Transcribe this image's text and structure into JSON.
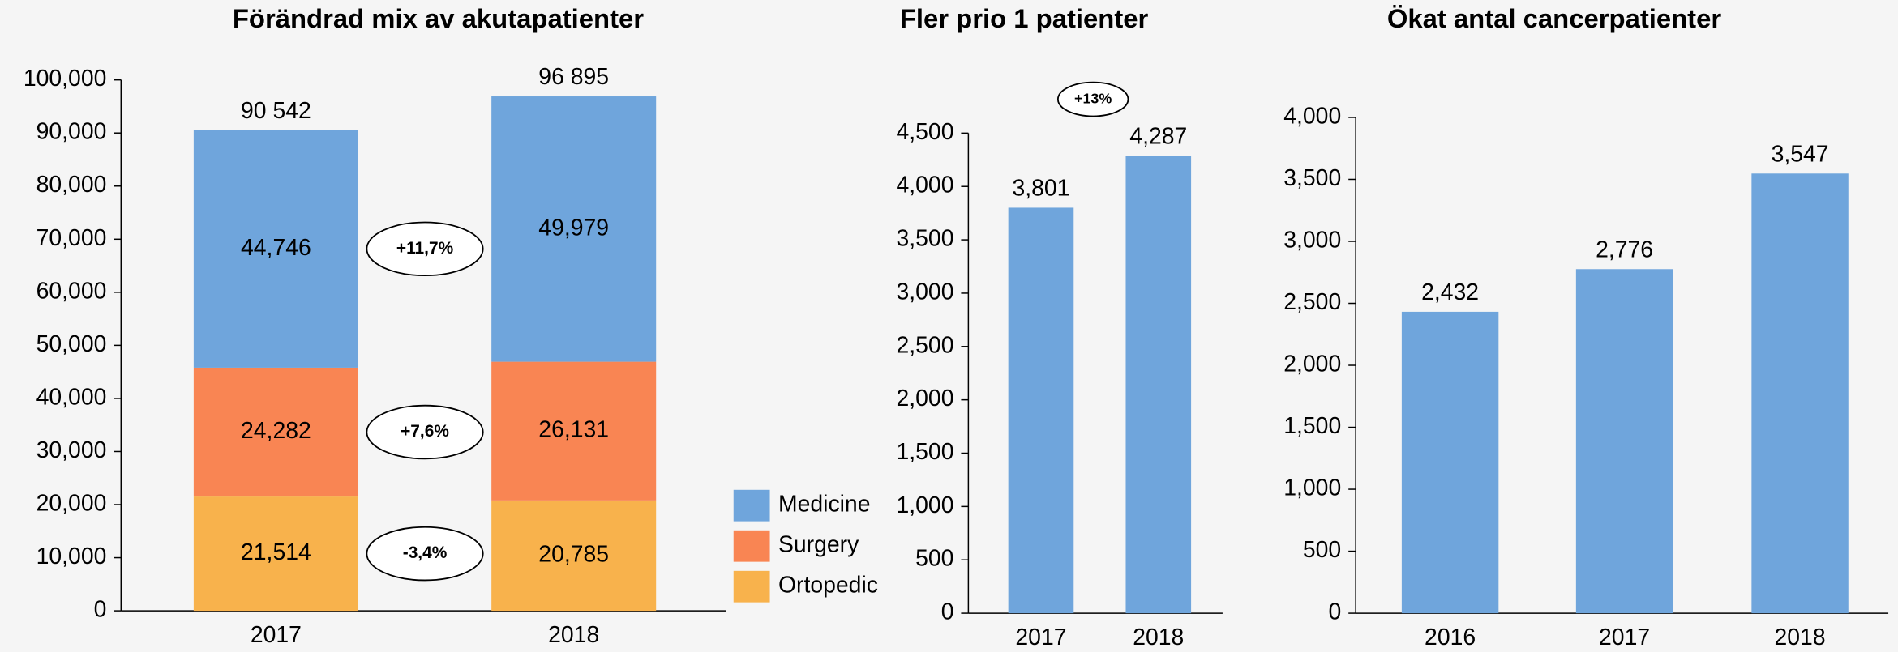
{
  "chart_data": [
    {
      "type": "stacked-bar",
      "title": "Förändrad mix av akutapatienter",
      "categories": [
        "2017",
        "2018"
      ],
      "series": [
        {
          "name": "Medicine",
          "color": "#6fa5dc",
          "values": [
            44746,
            49979
          ],
          "value_labels": [
            "44,746",
            "49,979"
          ]
        },
        {
          "name": "Surgery",
          "color": "#f98553",
          "values": [
            24282,
            26131
          ],
          "value_labels": [
            "24,282",
            "26,131"
          ]
        },
        {
          "name": "Ortopedic",
          "color": "#f8b24c",
          "values": [
            21514,
            20785
          ],
          "value_labels": [
            "21,514",
            "20,785"
          ]
        }
      ],
      "total_labels": [
        "90 542",
        "96 895"
      ],
      "annotations": [
        "+11,7%",
        "+7,6%",
        "-3,4%"
      ],
      "ylim": [
        0,
        100000
      ],
      "yticks": [
        0,
        {
          "value": 10000,
          "label": "10,000"
        },
        {
          "value": 20000,
          "label": "20,000"
        },
        {
          "value": 30000,
          "label": "30,000"
        },
        {
          "value": 40000,
          "label": "40,000"
        },
        {
          "value": 50000,
          "label": "50,000"
        },
        {
          "value": 60000,
          "label": "60,000"
        },
        {
          "value": 70000,
          "label": "70,000"
        },
        {
          "value": 80000,
          "label": "80,000"
        },
        {
          "value": 90000,
          "label": "90,000"
        },
        {
          "value": 100000,
          "label": "100,000"
        }
      ],
      "legend": "right"
    },
    {
      "type": "bar",
      "title": "Fler prio 1 patienter",
      "categories": [
        "2017",
        "2018"
      ],
      "values": [
        3801,
        4287
      ],
      "value_labels": [
        "3,801",
        "4,287"
      ],
      "color": "#6fa5dc",
      "annotations": [
        "+13%"
      ],
      "ylim": [
        0,
        4500
      ],
      "yticks": [
        0,
        500,
        {
          "value": 1000,
          "label": "1,000"
        },
        {
          "value": 1500,
          "label": "1,500"
        },
        {
          "value": 2000,
          "label": "2,000"
        },
        {
          "value": 2500,
          "label": "2,500"
        },
        {
          "value": 3000,
          "label": "3,000"
        },
        {
          "value": 3500,
          "label": "3,500"
        },
        {
          "value": 4000,
          "label": "4,000"
        },
        {
          "value": 4500,
          "label": "4,500"
        }
      ]
    },
    {
      "type": "bar",
      "title": "Ökat antal cancerpatienter",
      "categories": [
        "2016",
        "2017",
        "2018"
      ],
      "values": [
        2432,
        2776,
        3547
      ],
      "value_labels": [
        "2,432",
        "2,776",
        "3,547"
      ],
      "color": "#6fa5dc",
      "ylim": [
        0,
        4000
      ],
      "yticks": [
        0,
        500,
        {
          "value": 1000,
          "label": "1,000"
        },
        {
          "value": 1500,
          "label": "1,500"
        },
        {
          "value": 2000,
          "label": "2,000"
        },
        {
          "value": 2500,
          "label": "2,500"
        },
        {
          "value": 3000,
          "label": "3,000"
        },
        {
          "value": 3500,
          "label": "3,500"
        },
        {
          "value": 4000,
          "label": "4,000"
        }
      ]
    }
  ]
}
